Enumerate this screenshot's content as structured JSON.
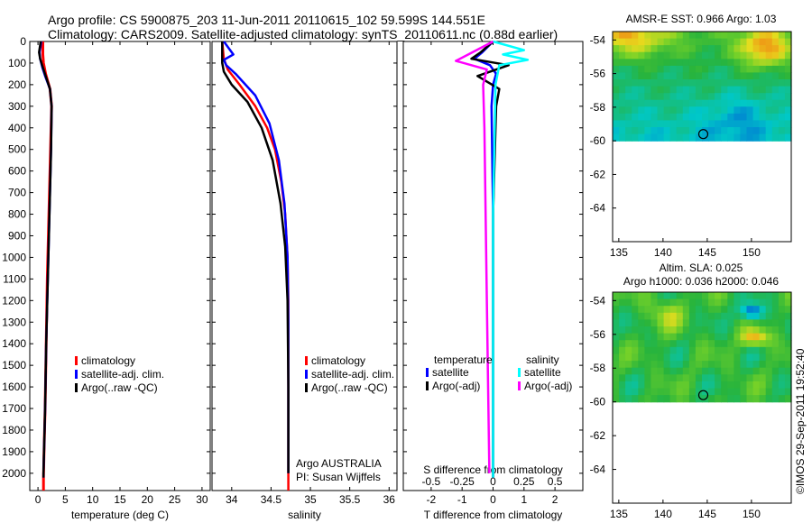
{
  "header": {
    "line1": "Argo profile: CS 5900875_203 11-Jun-2011 20110615_102 59.599S 144.551E",
    "line2": "Climatology: CARS2009. Satellite-adjusted climatology: synTS_20110611.nc (0.88d earlier)"
  },
  "credit": "©IMOS 29-Sep-2011 19:52:40",
  "colors": {
    "climatology": "#ff0000",
    "satellite": "#0000ff",
    "argo": "#000000",
    "sal_satellite": "#00ffff",
    "sal_argo": "#ff00ff"
  },
  "chart_data": [
    {
      "type": "line",
      "id": "temperature",
      "xlabel": "temperature (deg C)",
      "ylabel": "",
      "xlim": [
        -1.5,
        31.5
      ],
      "ylim": [
        2080,
        0
      ],
      "xticks": [
        0,
        5,
        10,
        15,
        20,
        25,
        30
      ],
      "yticks": [
        0,
        100,
        200,
        300,
        400,
        500,
        600,
        700,
        800,
        900,
        1000,
        1100,
        1200,
        1300,
        1400,
        1500,
        1600,
        1700,
        1800,
        1900,
        2000
      ],
      "legend": [
        "climatology",
        "satellite-adj. clim.",
        "Argo(..raw -QC)"
      ],
      "series": [
        {
          "name": "climatology",
          "x": [
            0.9,
            0.9,
            1.0,
            1.4,
            2.2,
            2.5,
            2.3,
            2.0,
            1.7,
            1.5,
            1.3,
            1.1,
            1.0,
            1.0
          ],
          "y": [
            0,
            60,
            100,
            150,
            220,
            300,
            500,
            800,
            1100,
            1400,
            1700,
            1900,
            2020,
            2080
          ]
        },
        {
          "name": "satellite-adj. clim.",
          "x": [
            0.6,
            0.3,
            0.4,
            0.8,
            1.3,
            2.2,
            2.5,
            2.4,
            2.1,
            1.8,
            1.5,
            1.3,
            1.1,
            1.0,
            1.0
          ],
          "y": [
            0,
            50,
            80,
            120,
            160,
            220,
            300,
            500,
            800,
            1100,
            1400,
            1700,
            1900,
            2000,
            2020
          ]
        },
        {
          "name": "Argo(..raw -QC)",
          "x": [
            0.5,
            0.2,
            0.4,
            0.9,
            1.4,
            2.2,
            2.5,
            2.4,
            2.1,
            1.8,
            1.5,
            1.3,
            1.1,
            1.0,
            1.0
          ],
          "y": [
            0,
            50,
            80,
            120,
            160,
            220,
            300,
            500,
            800,
            1100,
            1400,
            1700,
            1900,
            2000,
            2020
          ]
        }
      ]
    },
    {
      "type": "line",
      "id": "salinity",
      "xlabel": "salinity",
      "ylabel": "",
      "xlim": [
        33.75,
        36.1
      ],
      "ylim": [
        2080,
        0
      ],
      "xticks": [
        34,
        34.5,
        35,
        35.5,
        36
      ],
      "xticklabels": [
        "34",
        "34.5",
        "35",
        "35.5",
        "36"
      ],
      "legend": [
        "climatology",
        "satellite-adj. clim.",
        "Argo(..raw -QC)"
      ],
      "annotations": [
        "Argo AUSTRALIA",
        "PI: Susan Wijffels"
      ],
      "series": [
        {
          "name": "climatology",
          "x": [
            33.88,
            33.9,
            33.95,
            34.1,
            34.3,
            34.45,
            34.55,
            34.63,
            34.68,
            34.71,
            34.72,
            34.72,
            34.72
          ],
          "y": [
            0,
            80,
            130,
            200,
            300,
            400,
            500,
            650,
            800,
            1000,
            1200,
            1600,
            2080
          ]
        },
        {
          "name": "satellite-adj. clim.",
          "x": [
            33.9,
            34.02,
            33.9,
            33.93,
            34.05,
            34.3,
            34.48,
            34.6,
            34.67,
            34.71,
            34.72,
            34.72
          ],
          "y": [
            0,
            60,
            85,
            110,
            150,
            250,
            380,
            550,
            750,
            1000,
            1300,
            2000
          ]
        },
        {
          "name": "Argo(..raw -QC)",
          "x": [
            33.88,
            33.88,
            33.88,
            33.9,
            34.0,
            34.2,
            34.38,
            34.52,
            34.62,
            34.68,
            34.71,
            34.72,
            34.72
          ],
          "y": [
            0,
            60,
            100,
            140,
            200,
            280,
            400,
            550,
            750,
            950,
            1200,
            1600,
            2000
          ]
        }
      ]
    },
    {
      "type": "line",
      "id": "difference",
      "xlabel": "T difference from climatology",
      "top_label": "S difference from climatology",
      "xlim": [
        -2.9,
        2.9
      ],
      "ylim": [
        2080,
        0
      ],
      "xticks": [
        -2,
        -1,
        0,
        1,
        2
      ],
      "top_ticks": [
        -0.5,
        -0.25,
        0,
        0.25,
        0.5
      ],
      "legend_titles": [
        "temperature",
        "salinity"
      ],
      "legend": [
        "satellite",
        "Argo(-adj)",
        "satellite",
        "Argo(-adj)"
      ],
      "series": [
        {
          "name": "satellite",
          "group": "temperature",
          "x": [
            0,
            -0.35,
            -0.6,
            -0.1,
            0.1,
            0,
            -0.05,
            0,
            0
          ],
          "y": [
            0,
            50,
            80,
            110,
            150,
            200,
            300,
            800,
            2020
          ]
        },
        {
          "name": "Argo(-adj)",
          "group": "temperature",
          "x": [
            0,
            -0.4,
            -0.7,
            0.5,
            -0.5,
            0.2,
            0.1,
            0,
            0
          ],
          "y": [
            0,
            50,
            80,
            110,
            160,
            220,
            300,
            800,
            2020
          ]
        },
        {
          "name": "satellite",
          "group": "salinity",
          "x": [
            0,
            0.25,
            0.08,
            0.28,
            0.05,
            0.02,
            0,
            0
          ],
          "y": [
            0,
            40,
            60,
            85,
            110,
            200,
            800,
            2020
          ]
        },
        {
          "name": "Argo(-adj)",
          "group": "salinity",
          "x": [
            0,
            -0.2,
            -0.3,
            -0.05,
            -0.08,
            -0.07,
            -0.05,
            -0.03
          ],
          "y": [
            0,
            60,
            90,
            130,
            200,
            400,
            1200,
            2000
          ]
        }
      ]
    },
    {
      "type": "heatmap",
      "id": "sst-map",
      "title": "AMSR-E SST: 0.966 Argo: 1.03",
      "xlim": [
        134.3,
        154.5
      ],
      "ylim": [
        -66,
        -53.5
      ],
      "xticks": [
        135,
        140,
        145,
        150
      ],
      "yticks": [
        -54,
        -56,
        -58,
        -60,
        -62,
        -64
      ],
      "yticklabels": [
        "-54",
        "-56",
        "-58",
        "-60",
        "-62",
        "-64"
      ],
      "float_position": {
        "lon": 144.551,
        "lat": -59.599
      }
    },
    {
      "type": "heatmap",
      "id": "sla-map",
      "title_line1": "Altim. SLA: 0.025",
      "title_line2": "Argo h1000: 0.036 h2000: 0.046",
      "xlim": [
        134.3,
        154.5
      ],
      "ylim": [
        -66,
        -53.5
      ],
      "xticks": [
        135,
        140,
        145,
        150
      ],
      "yticks": [
        -54,
        -56,
        -58,
        -60,
        -62,
        -64
      ],
      "yticklabels": [
        "-54",
        "-56",
        "-58",
        "-60",
        "-62",
        "-64"
      ],
      "float_position": {
        "lon": 144.551,
        "lat": -59.599
      }
    }
  ]
}
